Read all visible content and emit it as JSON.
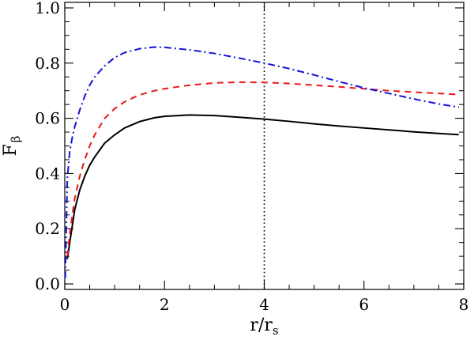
{
  "chart_data": {
    "type": "line",
    "xlabel": "r/r",
    "xlabel_sub": "s",
    "ylabel": "F",
    "ylabel_sub": "β",
    "xlim": [
      0,
      8
    ],
    "ylim": [
      -0.02,
      1.02
    ],
    "xticks": [
      0,
      2,
      4,
      6,
      8
    ],
    "xtick_labels": [
      "0",
      "2",
      "4",
      "6",
      "8"
    ],
    "yticks": [
      0.0,
      0.2,
      0.4,
      0.6,
      0.8,
      1.0
    ],
    "ytick_labels": [
      "0.0",
      "0.2",
      "0.4",
      "0.6",
      "0.8",
      "1.0"
    ],
    "minor_x_step": 0.5,
    "minor_y_step": 0.05,
    "vline": {
      "x": 4,
      "style": "dotted",
      "color": "#000000"
    },
    "series": [
      {
        "color": "#000000",
        "style": "solid",
        "x": [
          0.05,
          0.1,
          0.15,
          0.2,
          0.3,
          0.4,
          0.5,
          0.6,
          0.8,
          1.0,
          1.2,
          1.5,
          1.8,
          2.0,
          2.5,
          3.0,
          3.5,
          4.0,
          4.5,
          5.0,
          5.5,
          6.0,
          6.5,
          7.0,
          7.5,
          7.9
        ],
        "values": [
          0.09,
          0.15,
          0.21,
          0.27,
          0.34,
          0.39,
          0.43,
          0.46,
          0.51,
          0.54,
          0.565,
          0.588,
          0.602,
          0.607,
          0.612,
          0.61,
          0.604,
          0.597,
          0.589,
          0.58,
          0.572,
          0.565,
          0.558,
          0.551,
          0.545,
          0.541
        ]
      },
      {
        "color": "#e8191a",
        "style": "dashed",
        "x": [
          0.05,
          0.1,
          0.15,
          0.2,
          0.3,
          0.4,
          0.5,
          0.6,
          0.8,
          1.0,
          1.2,
          1.5,
          1.8,
          2.0,
          2.5,
          3.0,
          3.5,
          4.0,
          4.5,
          5.0,
          5.5,
          6.0,
          6.5,
          7.0,
          7.5,
          7.9
        ],
        "values": [
          0.1,
          0.18,
          0.25,
          0.31,
          0.39,
          0.45,
          0.5,
          0.54,
          0.6,
          0.635,
          0.66,
          0.685,
          0.7,
          0.707,
          0.72,
          0.728,
          0.731,
          0.73,
          0.726,
          0.72,
          0.714,
          0.707,
          0.7,
          0.695,
          0.69,
          0.686
        ]
      },
      {
        "color": "#1414d4",
        "style": "dashdot",
        "x": [
          0.01,
          0.03,
          0.05,
          0.1,
          0.15,
          0.2,
          0.3,
          0.4,
          0.5,
          0.6,
          0.8,
          1.0,
          1.2,
          1.5,
          1.8,
          2.0,
          2.5,
          3.0,
          3.5,
          4.0,
          4.5,
          5.0,
          5.5,
          6.0,
          6.5,
          7.0,
          7.5,
          7.9
        ],
        "values": [
          0.02,
          0.2,
          0.38,
          0.48,
          0.53,
          0.57,
          0.63,
          0.68,
          0.72,
          0.75,
          0.79,
          0.82,
          0.838,
          0.852,
          0.858,
          0.857,
          0.848,
          0.835,
          0.818,
          0.8,
          0.78,
          0.757,
          0.733,
          0.71,
          0.69,
          0.67,
          0.652,
          0.64
        ]
      }
    ]
  }
}
